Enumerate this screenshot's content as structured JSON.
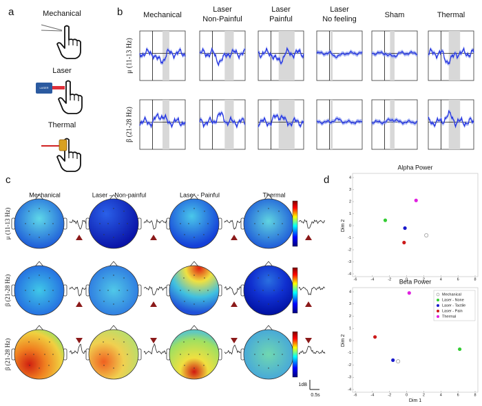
{
  "panels": {
    "a": {
      "label": "a",
      "items": [
        "Mechanical",
        "Laser",
        "Thermal"
      ],
      "device_text": "LASER"
    },
    "b": {
      "label": "b",
      "columns": [
        [
          "Mechanical"
        ],
        [
          "Laser",
          "Non-Painful"
        ],
        [
          "Laser",
          "Painful"
        ],
        [
          "Laser",
          "No feeling"
        ],
        [
          "Sham"
        ],
        [
          "Thermal"
        ]
      ],
      "rows": [
        "μ (11-13 Hz)",
        "β (21-28 Hz)"
      ]
    },
    "c": {
      "label": "c",
      "columns": [
        "Mechanical",
        "Laser – Non-painful",
        "Laser - Painful",
        "Thermal"
      ],
      "rows": [
        "μ (11-13 Hz)",
        "β (21-28 Hz)",
        "β (21-28 Hz)"
      ],
      "scale_y": "1dB",
      "scale_x": "0.5s"
    },
    "d": {
      "label": "d"
    }
  },
  "chart_data": [
    {
      "type": "scatter",
      "title": "Alpha Power",
      "ylabel": "Dim 2",
      "xlim": [
        -6,
        8
      ],
      "ylim": [
        -4,
        4
      ],
      "xticks": [
        -6,
        -4,
        -2,
        0,
        2,
        4,
        6,
        8
      ],
      "yticks": [
        -4,
        -3,
        -2,
        -1,
        0,
        1,
        2,
        3,
        4
      ],
      "series": [
        {
          "color": "#999999",
          "marker": "open",
          "x": [
            2.3
          ],
          "values": [
            -0.8
          ]
        },
        {
          "color": "#33cc33",
          "marker": "filled",
          "x": [
            -2.5
          ],
          "values": [
            0.45
          ]
        },
        {
          "color": "#1a1acc",
          "marker": "filled",
          "x": [
            -0.2
          ],
          "values": [
            -0.2
          ]
        },
        {
          "color": "#cc1a1a",
          "marker": "filled",
          "x": [
            -0.3
          ],
          "values": [
            -1.4
          ]
        },
        {
          "color": "#e020e0",
          "marker": "filled",
          "x": [
            1.1
          ],
          "values": [
            2.1
          ]
        }
      ]
    },
    {
      "type": "scatter",
      "title": "Beta Power",
      "xlabel": "Dim 1",
      "ylabel": "Dim 2",
      "xlim": [
        -6,
        8
      ],
      "ylim": [
        -4,
        4
      ],
      "xticks": [
        -6,
        -4,
        -2,
        0,
        2,
        4,
        6,
        8
      ],
      "yticks": [
        -4,
        -3,
        -2,
        -1,
        0,
        1,
        2,
        3,
        4
      ],
      "legend": "upper right",
      "series": [
        {
          "name": "Mechanical",
          "color": "#999999",
          "marker": "open",
          "x": [
            -1.0
          ],
          "values": [
            -1.7
          ]
        },
        {
          "name": "Laser - None",
          "color": "#33cc33",
          "marker": "filled",
          "x": [
            6.2
          ],
          "values": [
            -0.7
          ]
        },
        {
          "name": "Laser - Tactile",
          "color": "#1a1acc",
          "marker": "filled",
          "x": [
            -1.6
          ],
          "values": [
            -1.6
          ]
        },
        {
          "name": "Laser - Pain",
          "color": "#cc1a1a",
          "marker": "filled",
          "x": [
            -3.7
          ],
          "values": [
            0.3
          ]
        },
        {
          "name": "Thermal",
          "color": "#e020e0",
          "marker": "filled",
          "x": [
            0.3
          ],
          "values": [
            3.9
          ]
        }
      ]
    }
  ]
}
